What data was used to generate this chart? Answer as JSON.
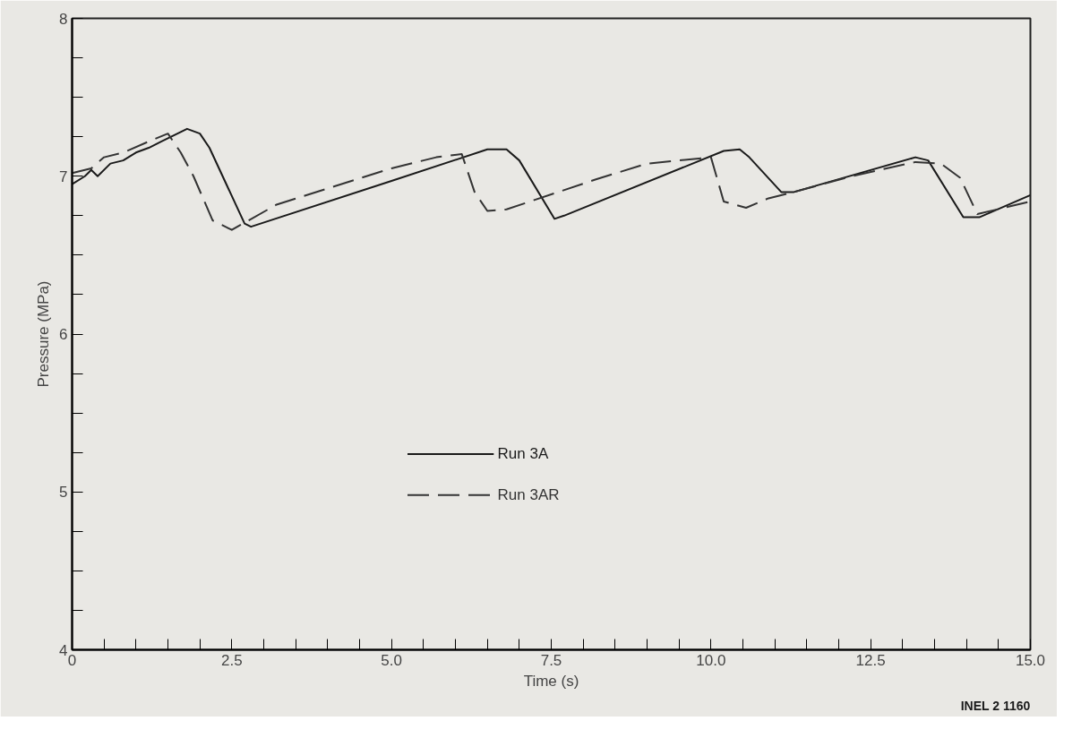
{
  "chart_data": {
    "type": "line",
    "xlabel": "Time (s)",
    "ylabel": "Pressure (MPa)",
    "annotations": [
      "INEL 2 1160"
    ],
    "xlim": [
      0,
      15
    ],
    "ylim": [
      4,
      8
    ],
    "xticks": [
      0,
      {
        "value": 0.5,
        "label": null
      },
      {
        "value": 1,
        "label": null
      },
      {
        "value": 1.5,
        "label": null
      },
      {
        "value": 2,
        "label": null
      },
      2.5,
      {
        "value": 3,
        "label": null
      },
      {
        "value": 3.5,
        "label": null
      },
      {
        "value": 4,
        "label": null
      },
      {
        "value": 4.5,
        "label": null
      },
      {
        "value": 5,
        "label": "5.0"
      },
      {
        "value": 5.5,
        "label": null
      },
      {
        "value": 6,
        "label": null
      },
      {
        "value": 6.5,
        "label": null
      },
      {
        "value": 7,
        "label": null
      },
      7.5,
      {
        "value": 8,
        "label": null
      },
      {
        "value": 8.5,
        "label": null
      },
      {
        "value": 9,
        "label": null
      },
      {
        "value": 9.5,
        "label": null
      },
      {
        "value": 10,
        "label": "10.0"
      },
      {
        "value": 10.5,
        "label": null
      },
      {
        "value": 11,
        "label": null
      },
      {
        "value": 11.5,
        "label": null
      },
      {
        "value": 12,
        "label": null
      },
      12.5,
      {
        "value": 13,
        "label": null
      },
      {
        "value": 13.5,
        "label": null
      },
      {
        "value": 14,
        "label": null
      },
      {
        "value": 14.5,
        "label": null
      },
      {
        "value": 15,
        "label": "15.0"
      }
    ],
    "yticks": [
      4,
      {
        "value": 4.25,
        "label": null
      },
      {
        "value": 4.5,
        "label": null
      },
      {
        "value": 4.75,
        "label": null
      },
      5,
      {
        "value": 5.25,
        "label": null
      },
      {
        "value": 5.5,
        "label": null
      },
      {
        "value": 5.75,
        "label": null
      },
      6,
      {
        "value": 6.25,
        "label": null
      },
      {
        "value": 6.5,
        "label": null
      },
      {
        "value": 6.75,
        "label": null
      },
      7,
      {
        "value": 7.25,
        "label": null
      },
      {
        "value": 7.5,
        "label": null
      },
      {
        "value": 7.75,
        "label": null
      },
      8
    ],
    "grid": false,
    "legend": "center",
    "series": [
      {
        "name": "Run 3A",
        "color": "#1a1a1a",
        "line_style": "solid",
        "x": [
          0,
          0.2,
          0.3,
          0.4,
          0.6,
          0.8,
          1.0,
          1.2,
          1.4,
          1.6,
          1.8,
          2.0,
          2.15,
          2.7,
          2.8,
          5.0,
          6.5,
          6.8,
          7.0,
          7.55,
          7.7,
          10.2,
          10.45,
          10.6,
          11.1,
          11.3,
          13.2,
          13.4,
          13.95,
          14.2,
          15
        ],
        "values": [
          6.95,
          7.0,
          7.04,
          7.0,
          7.08,
          7.1,
          7.15,
          7.18,
          7.22,
          7.26,
          7.3,
          7.27,
          7.18,
          6.7,
          6.68,
          6.97,
          7.17,
          7.17,
          7.1,
          6.73,
          6.75,
          7.16,
          7.17,
          7.12,
          6.9,
          6.9,
          7.12,
          7.1,
          6.74,
          6.74,
          6.88
        ]
      },
      {
        "name": "Run 3AR",
        "color": "#333333",
        "line_style": "dashed",
        "x": [
          0,
          0.3,
          0.5,
          0.8,
          1.2,
          1.5,
          1.7,
          1.9,
          2.2,
          2.5,
          3.2,
          5.0,
          5.7,
          6.1,
          6.3,
          6.5,
          6.8,
          8.2,
          9.0,
          10.0,
          10.2,
          10.55,
          10.9,
          11.3,
          12.2,
          13.2,
          13.6,
          13.9,
          14.17,
          15
        ],
        "values": [
          7.02,
          7.05,
          7.12,
          7.15,
          7.22,
          7.27,
          7.15,
          7.0,
          6.72,
          6.66,
          6.82,
          7.05,
          7.12,
          7.14,
          6.9,
          6.78,
          6.79,
          6.98,
          7.08,
          7.12,
          6.84,
          6.8,
          6.86,
          6.9,
          7.0,
          7.09,
          7.08,
          6.99,
          6.76,
          6.84
        ]
      }
    ]
  }
}
